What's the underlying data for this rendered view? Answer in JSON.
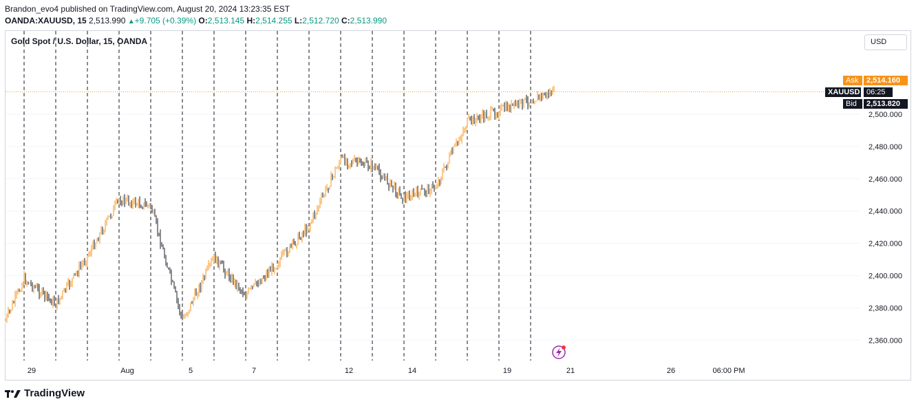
{
  "header": {
    "publish_line": "Brandon_evo4 published on TradingView.com, August 20, 2024 13:23:35 EST",
    "symbol": "OANDA:XAUUSD, 15",
    "price": "2,513.990",
    "change": "+9.705 (+0.39%)",
    "o_label": "O:",
    "o_value": "2,513.145",
    "h_label": "H:",
    "h_value": "2,514.255",
    "l_label": "L:",
    "l_value": "2,512.720",
    "c_label": "C:",
    "c_value": "2,513.990"
  },
  "chart_title": "Gold Spot / U.S. Dollar, 15, OANDA",
  "currency_button": "USD",
  "tags": {
    "ask_label": "Ask",
    "ask_value": "2,514.160",
    "sym_label": "XAUUSD",
    "countdown": "06:25",
    "bid_label": "Bid",
    "bid_value": "2,513.820"
  },
  "branding": "TradingView",
  "colors": {
    "up": "#089981",
    "candle_up": "#f7931a",
    "candle_down": "#131722",
    "ask": "#f7931a",
    "bid": "#131722"
  },
  "chart_data": {
    "type": "line",
    "ylim": [
      2350,
      2530
    ],
    "y_ticks": [
      "2,500.000",
      "2,480.000",
      "2,460.000",
      "2,440.000",
      "2,420.000",
      "2,400.000",
      "2,380.000",
      "2,360.000"
    ],
    "x_ticks": [
      "29",
      "Aug",
      "5",
      "7",
      "12",
      "14",
      "19",
      "21",
      "26",
      "06:00 PM"
    ],
    "series": [
      {
        "x": [
          "Jul 26",
          "Jul 29",
          "Jul 30",
          "Jul 31",
          "Aug 1",
          "Aug 2",
          "Aug 5",
          "Aug 6",
          "Aug 7",
          "Aug 8",
          "Aug 9",
          "Aug 12",
          "Aug 13",
          "Aug 14",
          "Aug 15",
          "Aug 16",
          "Aug 19",
          "Aug 20"
        ],
        "values": [
          2372,
          2398,
          2382,
          2412,
          2447,
          2443,
          2372,
          2411,
          2388,
          2408,
          2431,
          2472,
          2468,
          2448,
          2455,
          2495,
          2502,
          2513.99
        ]
      }
    ]
  }
}
